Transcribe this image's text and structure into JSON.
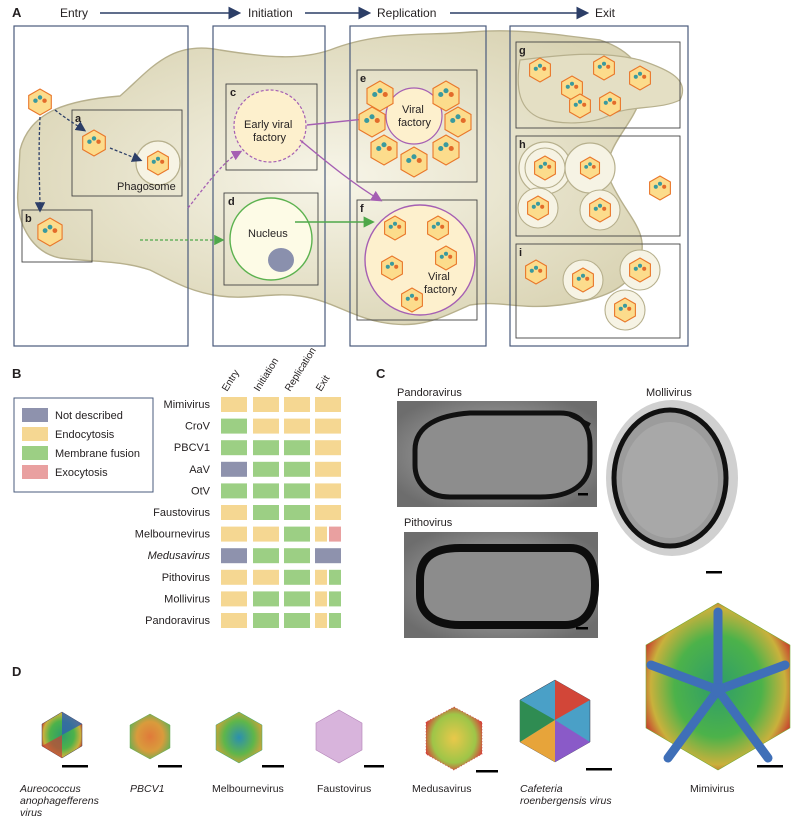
{
  "panel_letters": {
    "A": "A",
    "B": "B",
    "C": "C",
    "D": "D"
  },
  "stages": [
    "Entry",
    "Initiation",
    "Replication",
    "Exit"
  ],
  "subpanel_letters": [
    "a",
    "b",
    "c",
    "d",
    "e",
    "f",
    "g",
    "h",
    "i"
  ],
  "cell_labels": {
    "phagosome": "Phagosome",
    "early_factory_line1": "Early viral",
    "early_factory_line2": "factory",
    "nucleus": "Nucleus",
    "viral_factory_e_line1": "Viral",
    "viral_factory_e_line2": "factory",
    "viral_factory_f_line1": "Viral",
    "viral_factory_f_line2": "factory"
  },
  "legend": [
    {
      "label": "Not described",
      "color": "#8e92ad"
    },
    {
      "label": "Endocytosis",
      "color": "#f5d792"
    },
    {
      "label": "Membrane fusion",
      "color": "#9ccf84"
    },
    {
      "label": "Exocytosis",
      "color": "#e9a0a0"
    }
  ],
  "chart_data": {
    "type": "table",
    "columns": [
      "Entry",
      "Initiation",
      "Replication",
      "Exit"
    ],
    "rows": [
      {
        "virus": "Mimivirus",
        "italic": false,
        "cells": [
          "E",
          "E",
          "E",
          "E"
        ]
      },
      {
        "virus": "CroV",
        "italic": false,
        "cells": [
          "M",
          "E",
          "E",
          "E"
        ]
      },
      {
        "virus": "PBCV1",
        "italic": false,
        "cells": [
          "M",
          "M",
          "M",
          "E"
        ]
      },
      {
        "virus": "AaV",
        "italic": false,
        "cells": [
          "N",
          "M",
          "M",
          "E"
        ]
      },
      {
        "virus": "OtV",
        "italic": false,
        "cells": [
          "M",
          "M",
          "M",
          "E"
        ]
      },
      {
        "virus": "Faustovirus",
        "italic": false,
        "cells": [
          "E",
          "M",
          "M",
          "E"
        ]
      },
      {
        "virus": "Melbournevirus",
        "italic": false,
        "cells": [
          "E",
          "E",
          "M",
          "E|X"
        ]
      },
      {
        "virus": "Medusavirus",
        "italic": true,
        "cells": [
          "N",
          "M",
          "M",
          "N"
        ]
      },
      {
        "virus": "Pithovirus",
        "italic": false,
        "cells": [
          "E",
          "E",
          "M",
          "E|M"
        ]
      },
      {
        "virus": "Mollivirus",
        "italic": false,
        "cells": [
          "E",
          "M",
          "M",
          "E|M"
        ]
      },
      {
        "virus": "Pandoravirus",
        "italic": false,
        "cells": [
          "E",
          "M",
          "M",
          "E|M"
        ]
      }
    ]
  },
  "micrographs": {
    "pandoravirus": "Pandoravirus",
    "mollivirus": "Mollivirus",
    "pithovirus": "Pithovirus"
  },
  "structures": [
    {
      "line1": "Aureococcus",
      "line2": "anophagefferens",
      "line3": "virus",
      "italic": true
    },
    {
      "line1": "PBCV1",
      "line2": "",
      "line3": "",
      "italic": true
    },
    {
      "line1": "Melbournevirus",
      "line2": "",
      "line3": "",
      "italic": false
    },
    {
      "line1": "Faustovirus",
      "line2": "",
      "line3": "",
      "italic": false
    },
    {
      "line1": "Medusavirus",
      "line2": "",
      "line3": "",
      "italic": false
    },
    {
      "line1": "Cafeteria",
      "line2": "roenbergensis virus",
      "line3": "",
      "italic": true
    },
    {
      "line1": "Mimivirus",
      "line2": "",
      "line3": "",
      "italic": false
    }
  ],
  "colors": {
    "box_border": "#4a5b7c",
    "cell_fill": "#ece8d3",
    "cell_stroke": "#b7b08d",
    "capsid_fill": "#fcdc8c",
    "capsid_stroke": "#e9772a",
    "dot_teal": "#3a9a9e",
    "dot_orange": "#e36b2a",
    "entry_arrow": "#2c3e67",
    "purple_arrow": "#a55fb3",
    "green_arrow": "#4fa84a",
    "nucleus_border": "#5cb24f",
    "nucleolus": "#8a90ad",
    "factory_fill": "#fdf0cd",
    "factory_stroke": "#a55fb3"
  }
}
